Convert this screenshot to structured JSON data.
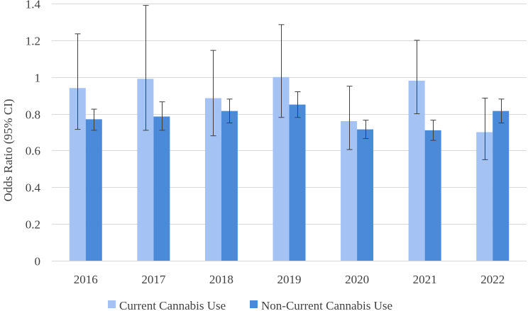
{
  "chart_data": {
    "type": "bar",
    "title": "",
    "xlabel": "",
    "ylabel": "Odds Ratio (95% CI)",
    "ylim": [
      0,
      1.4
    ],
    "yticks": [
      0,
      0.2,
      0.4,
      0.6,
      0.8,
      1,
      1.2,
      1.4
    ],
    "ytick_labels": [
      "0",
      "0.2",
      "0.4",
      "0.6",
      "0.8",
      "1",
      "1.2",
      "1.4"
    ],
    "grid": true,
    "legend_position": "bottom",
    "categories": [
      "2016",
      "2017",
      "2018",
      "2019",
      "2020",
      "2021",
      "2022"
    ],
    "series": [
      {
        "name": "Current Cannabis Use",
        "color": "#a4c2f4",
        "values": [
          0.94,
          0.99,
          0.885,
          1.0,
          0.76,
          0.98,
          0.7
        ],
        "ci_lower": [
          0.715,
          0.71,
          0.68,
          0.78,
          0.605,
          0.8,
          0.55
        ],
        "ci_upper": [
          1.235,
          1.39,
          1.145,
          1.285,
          0.95,
          1.2,
          0.885
        ]
      },
      {
        "name": "Non-Current Cannabis Use",
        "color": "#4a8ad8",
        "values": [
          0.77,
          0.785,
          0.815,
          0.85,
          0.715,
          0.71,
          0.815
        ],
        "ci_lower": [
          0.71,
          0.71,
          0.75,
          0.78,
          0.665,
          0.655,
          0.75
        ],
        "ci_upper": [
          0.825,
          0.865,
          0.88,
          0.92,
          0.765,
          0.765,
          0.88
        ]
      }
    ]
  }
}
